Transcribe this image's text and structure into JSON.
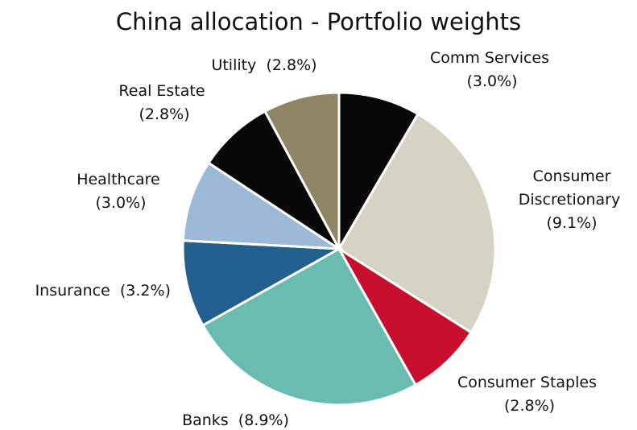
{
  "chart_data": {
    "type": "pie",
    "title": "China allocation - Portfolio weights",
    "categories": [
      "Comm Services",
      "Consumer Discretionary",
      "Consumer Staples",
      "Banks",
      "Insurance",
      "Healthcare",
      "Real Estate",
      "Utility"
    ],
    "values": [
      3.0,
      9.1,
      2.8,
      8.9,
      3.2,
      3.0,
      2.8,
      2.8
    ],
    "value_labels": [
      "(3.0%)",
      "(9.1%)",
      "(2.8%)",
      "(8.9%)",
      "(3.2%)",
      "(3.0%)",
      "(2.8%)",
      "(2.8%)"
    ],
    "colors": [
      "#080808",
      "#d6d3c4",
      "#c8102e",
      "#6bbcb0",
      "#22608f",
      "#9db9d8",
      "#080808",
      "#8f8463"
    ]
  }
}
